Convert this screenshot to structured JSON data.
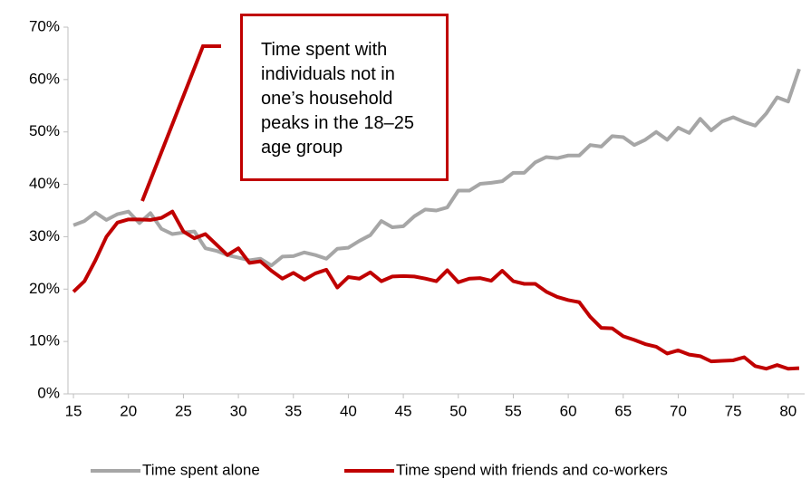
{
  "chart_data": {
    "type": "line",
    "x": [
      15,
      16,
      17,
      18,
      19,
      20,
      21,
      22,
      23,
      24,
      25,
      26,
      27,
      28,
      29,
      30,
      31,
      32,
      33,
      34,
      35,
      36,
      37,
      38,
      39,
      40,
      41,
      42,
      43,
      44,
      45,
      46,
      47,
      48,
      49,
      50,
      51,
      52,
      53,
      54,
      55,
      56,
      57,
      58,
      59,
      60,
      61,
      62,
      63,
      64,
      65,
      66,
      67,
      68,
      69,
      70,
      71,
      72,
      73,
      74,
      75,
      76,
      77,
      78,
      79,
      80,
      81
    ],
    "series": [
      {
        "name": "Time spent alone",
        "color": "#a6a6a6",
        "values": [
          32.2,
          33,
          34.6,
          33.2,
          34.3,
          34.8,
          32.6,
          34.5,
          31.5,
          30.5,
          30.8,
          31,
          27.8,
          27.3,
          26.5,
          26,
          25.5,
          25.8,
          24.5,
          26.2,
          26.3,
          27,
          26.5,
          25.8,
          27.7,
          27.9,
          29.2,
          30.3,
          33,
          31.8,
          32,
          33.9,
          35.2,
          35,
          35.6,
          38.8,
          38.8,
          40.1,
          40.3,
          40.6,
          42.2,
          42.2,
          44.2,
          45.2,
          45,
          45.5,
          45.5,
          47.5,
          47.2,
          49.2,
          49,
          47.5,
          48.5,
          50,
          48.5,
          50.8,
          49.8,
          52.5,
          50.3,
          52,
          52.8,
          51.9,
          51.2,
          53.5,
          56.6,
          55.8,
          62
        ]
      },
      {
        "name": "Time spend with friends and co-workers",
        "color": "#c00000",
        "values": [
          19.5,
          21.5,
          25.5,
          30,
          32.7,
          33.3,
          33.3,
          33.2,
          33.6,
          34.8,
          31,
          29.7,
          30.5,
          28.5,
          26.5,
          27.8,
          25,
          25.3,
          23.5,
          22,
          23.1,
          21.8,
          23,
          23.7,
          20.3,
          22.3,
          22,
          23.2,
          21.5,
          22.4,
          22.5,
          22.4,
          22,
          21.5,
          23.6,
          21.3,
          22,
          22.1,
          21.6,
          23.5,
          21.5,
          21,
          21,
          19.5,
          18.5,
          17.9,
          17.5,
          14.7,
          12.6,
          12.5,
          11,
          10.3,
          9.5,
          9,
          7.7,
          8.3,
          7.5,
          7.2,
          6.2,
          6.3,
          6.4,
          7,
          5.3,
          4.8,
          5.5,
          4.8,
          4.9
        ]
      }
    ],
    "xlim": [
      14.5,
      81.5
    ],
    "xticks": [
      15,
      20,
      25,
      30,
      35,
      40,
      45,
      50,
      55,
      60,
      65,
      70,
      75,
      80
    ],
    "ylim": [
      0,
      70
    ],
    "yticks": [
      {
        "value": 0,
        "label": "0%"
      },
      {
        "value": 10,
        "label": "10%"
      },
      {
        "value": 20,
        "label": "20%"
      },
      {
        "value": 30,
        "label": "30%"
      },
      {
        "value": 40,
        "label": "40%"
      },
      {
        "value": 50,
        "label": "50%"
      },
      {
        "value": 60,
        "label": "60%"
      },
      {
        "value": 70,
        "label": "70%"
      }
    ],
    "annotation": "Time spent with individuals not in one’s household peaks in the 18–25 age group",
    "grid": false,
    "legend": "bottom"
  }
}
